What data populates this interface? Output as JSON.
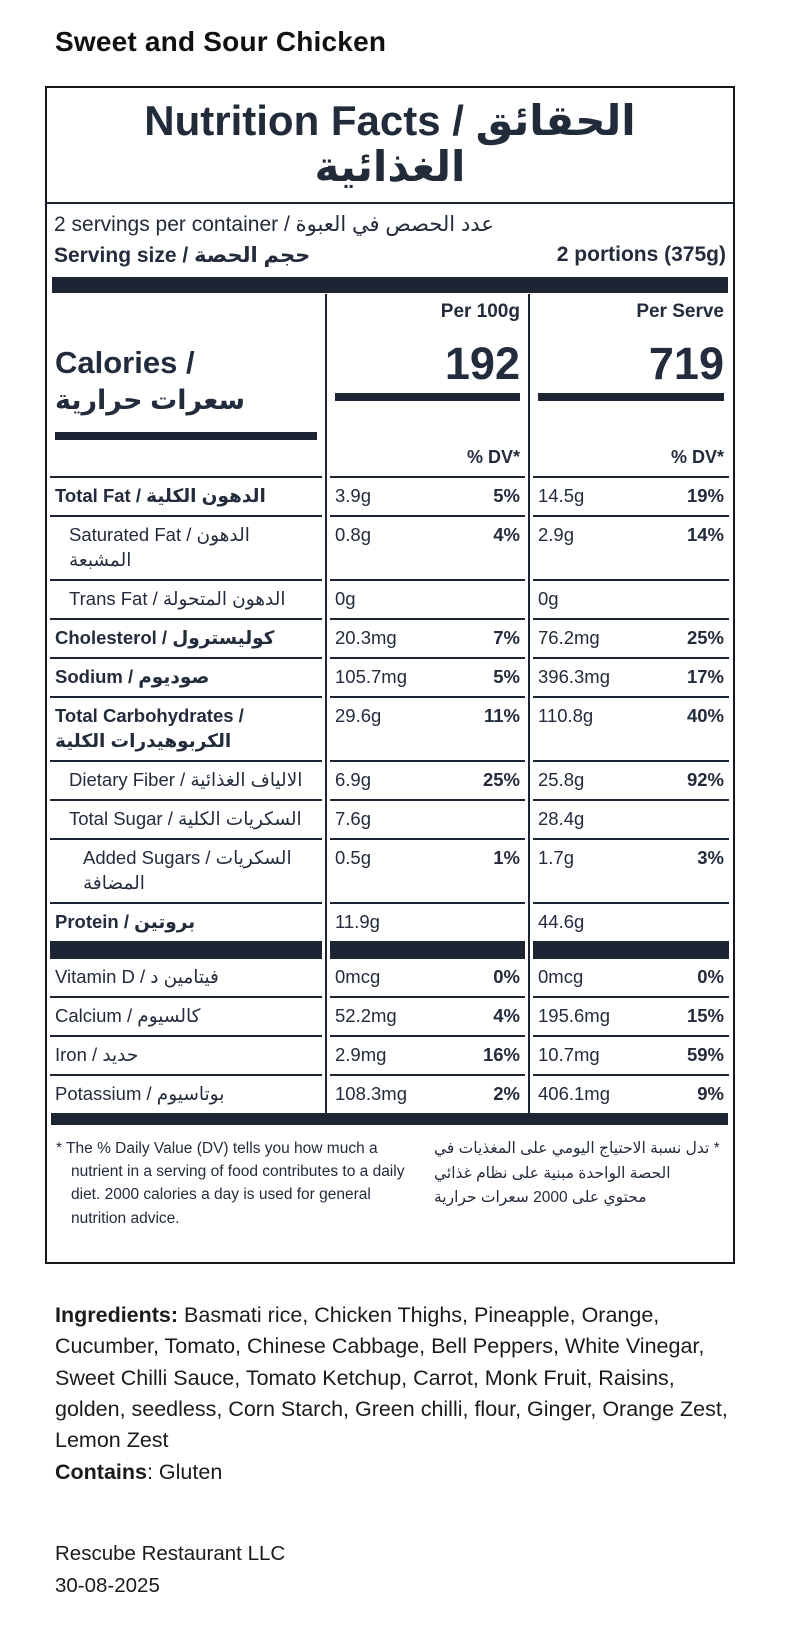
{
  "page": {
    "title": "Sweet and Sour Chicken"
  },
  "label": {
    "title_line1": "Nutrition Facts / الحقائق",
    "title_line2": "الغذائية",
    "servings_per_container": "2 servings per container / عدد الحصص في العبوة",
    "serving_size_label": "Serving size / حجم الحصة",
    "serving_size_value": "2 portions (375g)",
    "col_per_100g": "Per 100g",
    "col_per_serve": "Per Serve",
    "calories_label_en": "Calories /",
    "calories_label_ar": "سعرات حرارية",
    "calories_per_100g": "192",
    "calories_per_serve": "719",
    "dv_header": "% DV*",
    "rows": [
      {
        "label": "Total Fat / الدهون الكلية",
        "amount100": "3.9g",
        "dv100": "5%",
        "amountServe": "14.5g",
        "dvServe": "19%"
      },
      {
        "label": "Saturated Fat / الدهون المشبعة",
        "amount100": "0.8g",
        "dv100": "4%",
        "amountServe": "2.9g",
        "dvServe": "14%"
      },
      {
        "label": "Trans Fat / الدهون المتحولة",
        "amount100": "0g",
        "dv100": "",
        "amountServe": "0g",
        "dvServe": ""
      },
      {
        "label": "Cholesterol / كوليسترول",
        "amount100": "20.3mg",
        "dv100": "7%",
        "amountServe": "76.2mg",
        "dvServe": "25%"
      },
      {
        "label": "Sodium / صوديوم",
        "amount100": "105.7mg",
        "dv100": "5%",
        "amountServe": "396.3mg",
        "dvServe": "17%"
      },
      {
        "label": "Total Carbohydrates / الكربوهيدرات الكلية",
        "amount100": "29.6g",
        "dv100": "11%",
        "amountServe": "110.8g",
        "dvServe": "40%"
      },
      {
        "label": "Dietary Fiber / الالياف الغذائية",
        "amount100": "6.9g",
        "dv100": "25%",
        "amountServe": "25.8g",
        "dvServe": "92%"
      },
      {
        "label": "Total Sugar / السكريات الكلية",
        "amount100": "7.6g",
        "dv100": "",
        "amountServe": "28.4g",
        "dvServe": ""
      },
      {
        "label": "Added Sugars / السكريات المضافة",
        "amount100": "0.5g",
        "dv100": "1%",
        "amountServe": "1.7g",
        "dvServe": "3%"
      },
      {
        "label": "Protein / بروتين",
        "amount100": "11.9g",
        "dv100": "",
        "amountServe": "44.6g",
        "dvServe": ""
      }
    ],
    "vitamins": [
      {
        "label": "Vitamin D / فيتامين د",
        "amount100": "0mcg",
        "dv100": "0%",
        "amountServe": "0mcg",
        "dvServe": "0%"
      },
      {
        "label": "Calcium / كالسيوم",
        "amount100": "52.2mg",
        "dv100": "4%",
        "amountServe": "195.6mg",
        "dvServe": "15%"
      },
      {
        "label": "Iron / حديد",
        "amount100": "2.9mg",
        "dv100": "16%",
        "amountServe": "10.7mg",
        "dvServe": "59%"
      },
      {
        "label": "Potassium / بوتاسيوم",
        "amount100": "108.3mg",
        "dv100": "2%",
        "amountServe": "406.1mg",
        "dvServe": "9%"
      }
    ],
    "footnote_en": "* The % Daily Value (DV) tells you how much a nutrient in a serving of food contributes to a daily diet. 2000 calories a day is used for general nutrition advice.",
    "footnote_ar": "* تدل نسبة الاحتياج اليومي على المغذيات في الحصة الواحدة مبنية على نظام غذائي محتوي على 2000 سعرات حرارية"
  },
  "ingredients": {
    "label": "Ingredients:",
    "text": " Basmati rice, Chicken Thighs, Pineapple, Orange, Cucumber, Tomato, Chinese Cabbage, Bell Peppers, White Vinegar, Sweet Chilli Sauce, Tomato Ketchup, Carrot, Monk Fruit, Raisins, golden, seedless, Corn Starch, Green chilli,  flour, Ginger, Orange Zest, Lemon Zest",
    "contains_label": "Contains",
    "contains_text": ": Gluten"
  },
  "footer": {
    "company": "Rescube Restaurant LLC",
    "date": "30-08-2025"
  },
  "colors": {
    "ink": "#232c3c",
    "bar": "#1d2433",
    "border": "#14171d"
  }
}
